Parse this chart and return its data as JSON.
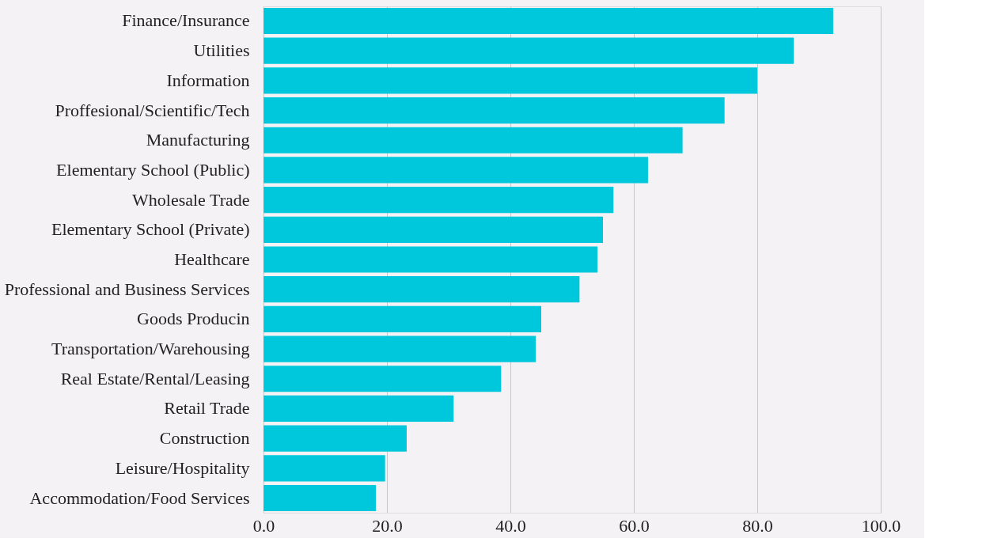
{
  "chart_data": {
    "type": "bar",
    "orientation": "horizontal",
    "categories": [
      "Finance/Insurance",
      "Utilities",
      "Information",
      "Proffesional/Scientific/Tech",
      "Manufacturing",
      "Elementary School (Public)",
      "Wholesale Trade",
      "Elementary School (Private)",
      "Healthcare",
      "Professional and Business Services",
      "Goods Producin",
      "Transportation/Warehousing",
      "Real Estate/Rental/Leasing",
      "Retail Trade",
      "Construction",
      "Leisure/Hospitality",
      "Accommodation/Food Services"
    ],
    "values": [
      92.3,
      85.9,
      80.0,
      74.7,
      67.9,
      62.3,
      56.7,
      55.0,
      54.1,
      51.2,
      45.0,
      44.1,
      38.5,
      30.8,
      23.2,
      19.7,
      18.2
    ],
    "color": "#00c8dc",
    "xlim": [
      0,
      100
    ],
    "xticks": [
      {
        "value": 0,
        "label": "0.0"
      },
      {
        "value": 20,
        "label": "20.0"
      },
      {
        "value": 40,
        "label": "40.0"
      },
      {
        "value": 60,
        "label": "60.0"
      },
      {
        "value": 80,
        "label": "80.0"
      },
      {
        "value": 100,
        "label": "100.0"
      }
    ],
    "grid": "x"
  }
}
